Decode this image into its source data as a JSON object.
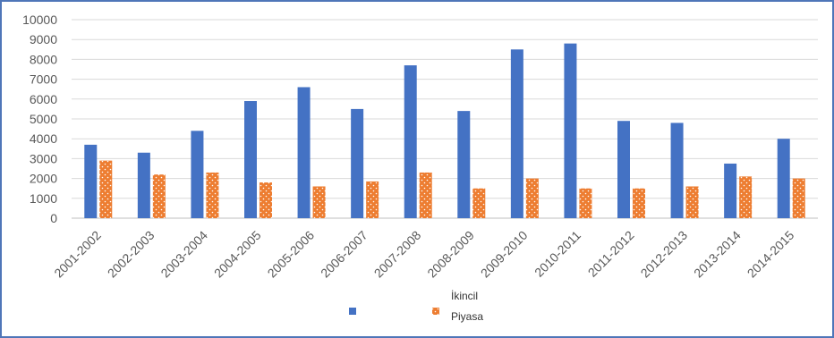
{
  "chart_data": {
    "type": "bar",
    "categories": [
      "2001-2002",
      "2002-2003",
      "2003-2004",
      "2004-2005",
      "2005-2006",
      "2006-2007",
      "2007-2008",
      "2008-2009",
      "2009-2010",
      "2010-2011",
      "2011-2012",
      "2012-2013",
      "2013-2014",
      "2014-2015"
    ],
    "series": [
      {
        "name": "",
        "color": "#4472c4",
        "pattern": "solid",
        "values": [
          3700,
          3300,
          4400,
          5900,
          6600,
          5500,
          7700,
          5400,
          8500,
          8800,
          4900,
          4800,
          2750,
          4000
        ]
      },
      {
        "name": "",
        "color": "#ed7d31",
        "pattern": "dotted",
        "values": [
          2900,
          2200,
          2300,
          1800,
          1600,
          1850,
          2300,
          1500,
          2000,
          1500,
          1500,
          1600,
          2100,
          2000
        ]
      }
    ],
    "legend_text": [
      "İkincil",
      "Piyasa"
    ],
    "legend_position": "bottom",
    "ylim": [
      0,
      10000
    ],
    "yticks": [
      "0",
      "1000",
      "2000",
      "3000",
      "4000",
      "5000",
      "6000",
      "7000",
      "8000",
      "9000",
      "10000"
    ],
    "grid": true,
    "title": "",
    "xlabel": "",
    "ylabel": ""
  }
}
